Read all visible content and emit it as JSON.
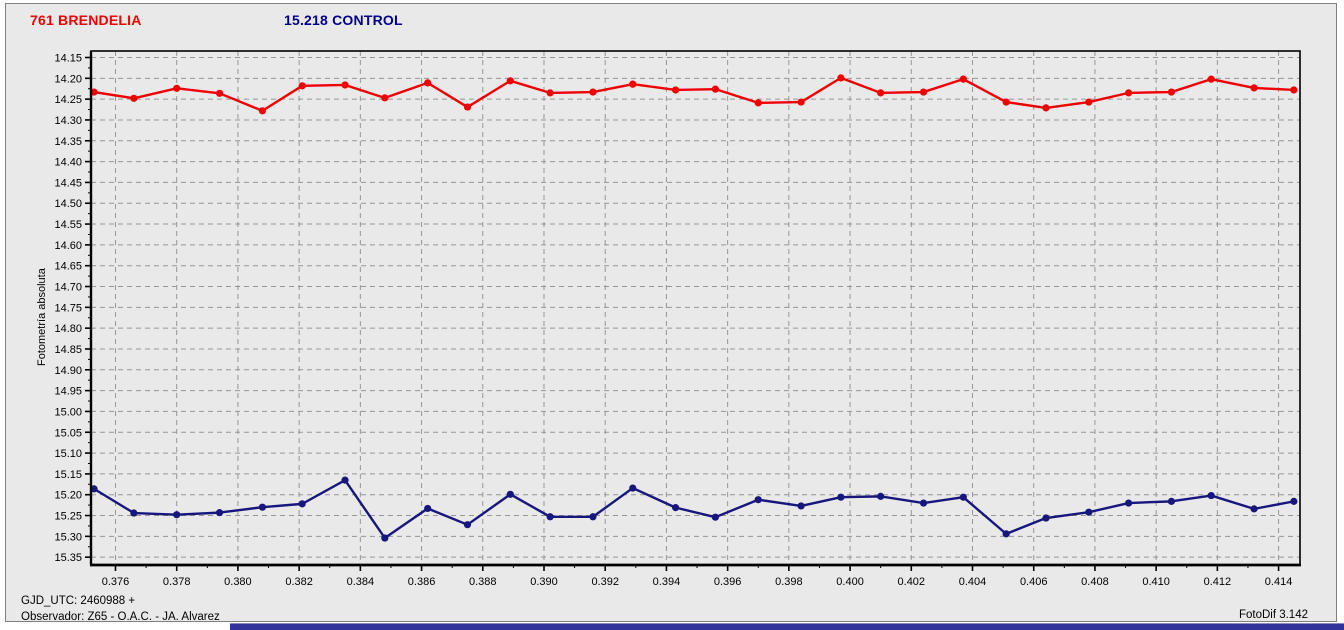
{
  "header": {
    "target_title": "761 BRENDELIA",
    "control_title": "15.218 CONTROL",
    "target_color": "#ee0000",
    "control_color": "#00008b"
  },
  "footer": {
    "gjd_utc": "GJD_UTC: 2460988 +",
    "observer": "Observador: Z65 - O.A.C. - JA. Alvarez",
    "app_version": "FotoDif 3.142"
  },
  "chart_data": {
    "type": "line",
    "title": "761 BRENDELIA / 15.218 CONTROL",
    "ylabel": "Fotometría absoluta",
    "xlabel": "GJD_UTC: 2460988 +",
    "y_axis_inverted": true,
    "grid": true,
    "legend_position": "top-titles",
    "xlim": [
      0.3752,
      0.4147
    ],
    "ylim_top_to_bottom": [
      14.1344,
      15.3688
    ],
    "x_ticks": [
      0.376,
      0.378,
      0.38,
      0.382,
      0.384,
      0.386,
      0.388,
      0.39,
      0.392,
      0.394,
      0.396,
      0.398,
      0.4,
      0.402,
      0.404,
      0.406,
      0.408,
      0.41,
      0.412,
      0.414
    ],
    "x_minor_step": 0.001,
    "y_ticks": [
      14.15,
      14.2,
      14.25,
      14.3,
      14.35,
      14.4,
      14.45,
      14.5,
      14.55,
      14.6,
      14.65,
      14.7,
      14.75,
      14.8,
      14.85,
      14.9,
      14.95,
      15.0,
      15.05,
      15.1,
      15.15,
      15.2,
      15.25,
      15.3,
      15.35
    ],
    "y_minor_step": 0.025,
    "x": [
      0.3753,
      0.3766,
      0.378,
      0.3794,
      0.3808,
      0.3821,
      0.3835,
      0.3848,
      0.3862,
      0.3875,
      0.3889,
      0.3902,
      0.3916,
      0.3929,
      0.3943,
      0.3956,
      0.397,
      0.3984,
      0.3997,
      0.401,
      0.4024,
      0.4037,
      0.4051,
      0.4064,
      0.4078,
      0.4091,
      0.4105,
      0.4118,
      0.4132,
      0.4145
    ],
    "series": [
      {
        "name": "761 BRENDELIA",
        "color": "#f00000",
        "marker": "circle",
        "values": [
          14.233,
          14.248,
          14.224,
          14.236,
          14.278,
          14.218,
          14.216,
          14.247,
          14.211,
          14.269,
          14.206,
          14.235,
          14.233,
          14.214,
          14.228,
          14.226,
          14.259,
          14.257,
          14.199,
          14.235,
          14.233,
          14.202,
          14.257,
          14.271,
          14.257,
          14.235,
          14.233,
          14.202,
          14.223,
          14.228
        ]
      },
      {
        "name": "15.218 CONTROL",
        "color": "#16167d",
        "marker": "circle",
        "values": [
          15.186,
          15.244,
          15.248,
          15.243,
          15.23,
          15.222,
          15.165,
          15.304,
          15.233,
          15.272,
          15.199,
          15.253,
          15.253,
          15.184,
          15.231,
          15.254,
          15.212,
          15.227,
          15.206,
          15.204,
          15.22,
          15.206,
          15.294,
          15.256,
          15.242,
          15.22,
          15.216,
          15.202,
          15.234,
          15.216
        ]
      }
    ],
    "colors": {
      "plot_bg": "#e9e9e9",
      "grid": "#969696",
      "axis": "#000000",
      "tick_label": "#000000"
    }
  }
}
